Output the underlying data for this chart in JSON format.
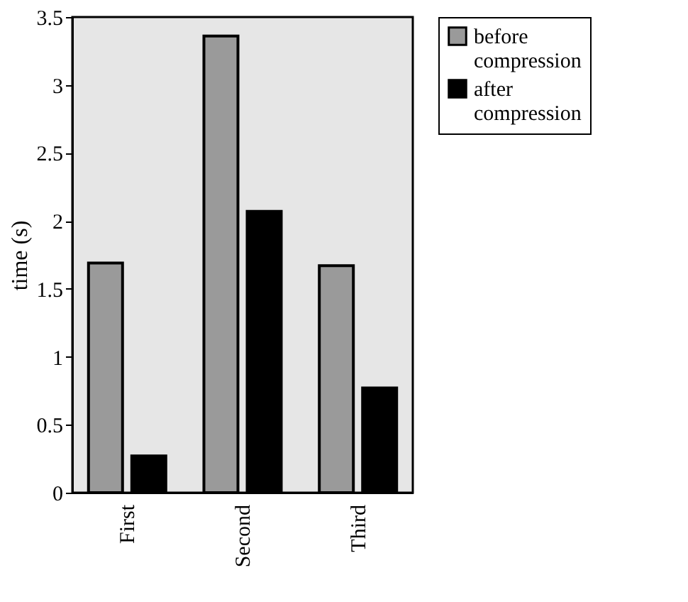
{
  "chart_data": {
    "type": "bar",
    "ylabel": "time (s)",
    "categories": [
      "First",
      "Second",
      "Third"
    ],
    "series": [
      {
        "name": "before compression",
        "color": "#9a9a9a",
        "values": [
          1.69,
          3.36,
          1.67
        ]
      },
      {
        "name": "after compression",
        "color": "#000000",
        "values": [
          0.27,
          2.07,
          0.77
        ]
      }
    ],
    "ylim": [
      0,
      3.5
    ],
    "yticks": [
      0,
      0.5,
      1,
      1.5,
      2,
      2.5,
      3,
      3.5
    ],
    "grid": false,
    "legend": "right"
  }
}
